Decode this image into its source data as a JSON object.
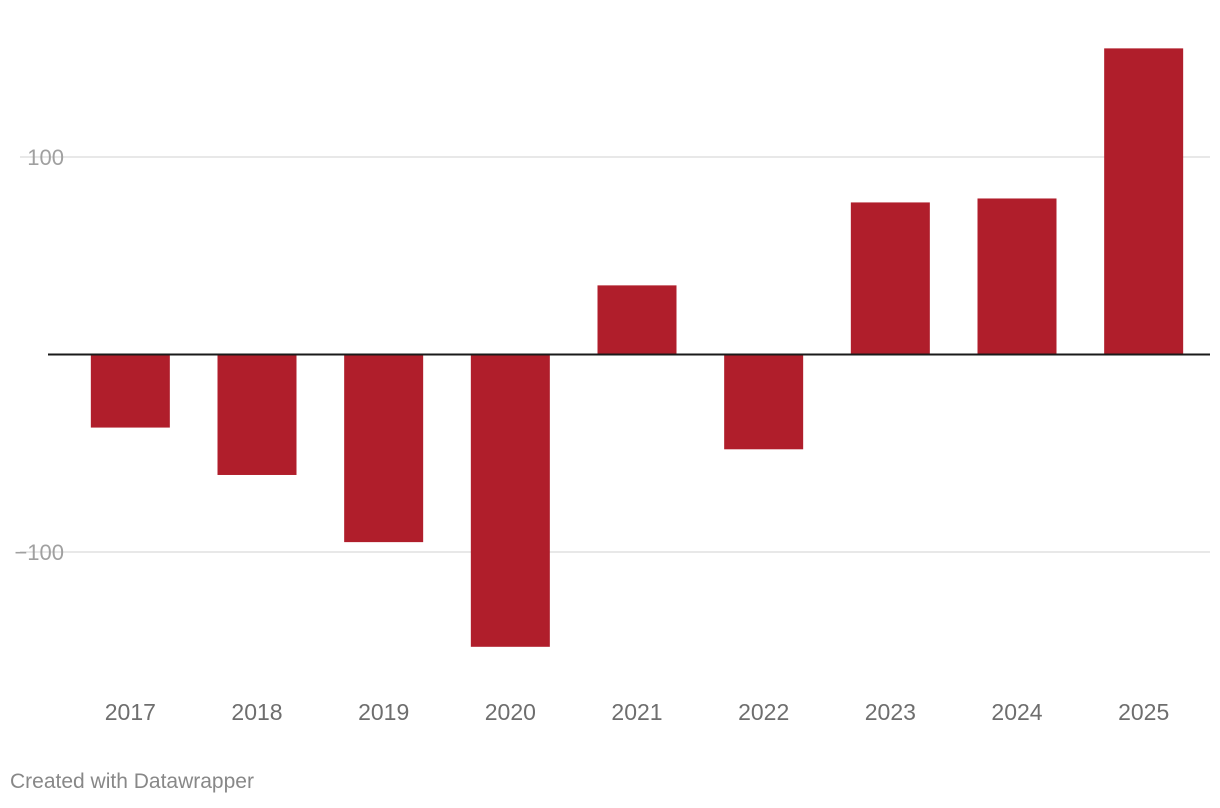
{
  "chart_data": {
    "type": "bar",
    "categories": [
      "2017",
      "2018",
      "2019",
      "2020",
      "2021",
      "2022",
      "2023",
      "2024",
      "2025"
    ],
    "values": [
      -37,
      -61,
      -95,
      -148,
      35,
      -48,
      77,
      79,
      155
    ],
    "ylim": [
      -160,
      160
    ],
    "yticks": [
      100,
      -100
    ],
    "ytick_labels": [
      "100",
      "−100"
    ],
    "title": "",
    "xlabel": "",
    "ylabel": "",
    "grid": true,
    "bar_color": "#b01e2b"
  },
  "footer": {
    "credit": "Created with Datawrapper"
  }
}
